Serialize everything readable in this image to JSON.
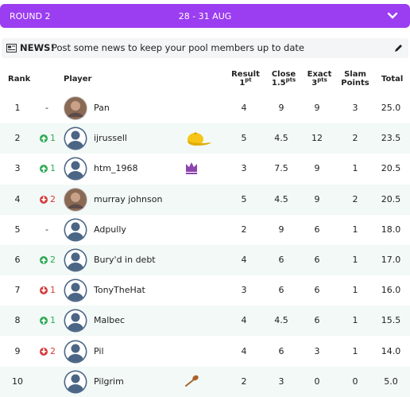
{
  "header": {
    "round": "ROUND 2",
    "dates": "28 - 31 AUG"
  },
  "news": {
    "label": "NEWS!",
    "text": "Post some news to keep your pool members up to date"
  },
  "table": {
    "columns": {
      "rank": "Rank",
      "player": "Player",
      "result": {
        "label": "Result",
        "sub": "1",
        "sup": "pt"
      },
      "close": {
        "label": "Close",
        "sub": "1.5",
        "sup": "pts"
      },
      "exact": {
        "label": "Exact",
        "sub": "3",
        "sup": "pts"
      },
      "slam": {
        "label": "Slam",
        "sub": "Points"
      },
      "total": "Total"
    },
    "rows": [
      {
        "rank": 1,
        "change": "-",
        "avatar": "photo",
        "name": "Pan",
        "result": 4,
        "close": 9,
        "exact": 9,
        "slam": 3,
        "total": "25.0"
      },
      {
        "rank": 2,
        "change": "1",
        "trend": "up",
        "name": "ijrussell",
        "badge": "cap",
        "result": 5,
        "close": 4.5,
        "exact": 12,
        "slam": 2,
        "total": "23.5"
      },
      {
        "rank": 3,
        "change": "1",
        "trend": "up",
        "name": "htm_1968",
        "badge": "crown",
        "result": 3,
        "close": 7.5,
        "exact": 9,
        "slam": 1,
        "total": "20.5"
      },
      {
        "rank": 4,
        "change": "2",
        "trend": "down",
        "avatar": "photo",
        "name": "murray johnson",
        "result": 5,
        "close": 4.5,
        "exact": 9,
        "slam": 2,
        "total": "20.5"
      },
      {
        "rank": 5,
        "change": "-",
        "name": "Adpully",
        "result": 2,
        "close": 9,
        "exact": 6,
        "slam": 1,
        "total": "18.0"
      },
      {
        "rank": 6,
        "change": "2",
        "trend": "up",
        "name": "Bury'd in debt",
        "result": 4,
        "close": 6,
        "exact": 6,
        "slam": 1,
        "total": "17.0"
      },
      {
        "rank": 7,
        "change": "1",
        "trend": "down",
        "name": "TonyTheHat",
        "result": 3,
        "close": 6,
        "exact": 6,
        "slam": 1,
        "total": "16.0"
      },
      {
        "rank": 8,
        "change": "1",
        "trend": "up",
        "name": "Malbec",
        "result": 4,
        "close": 4.5,
        "exact": 6,
        "slam": 1,
        "total": "15.5"
      },
      {
        "rank": 9,
        "change": "2",
        "trend": "down",
        "name": "Pil",
        "result": 4,
        "close": 6,
        "exact": 3,
        "slam": 1,
        "total": "14.0"
      },
      {
        "rank": 10,
        "name": "Pilgrim",
        "badge": "spoon",
        "result": 2,
        "close": 3,
        "exact": 0,
        "slam": 0,
        "total": "5.0"
      }
    ]
  }
}
